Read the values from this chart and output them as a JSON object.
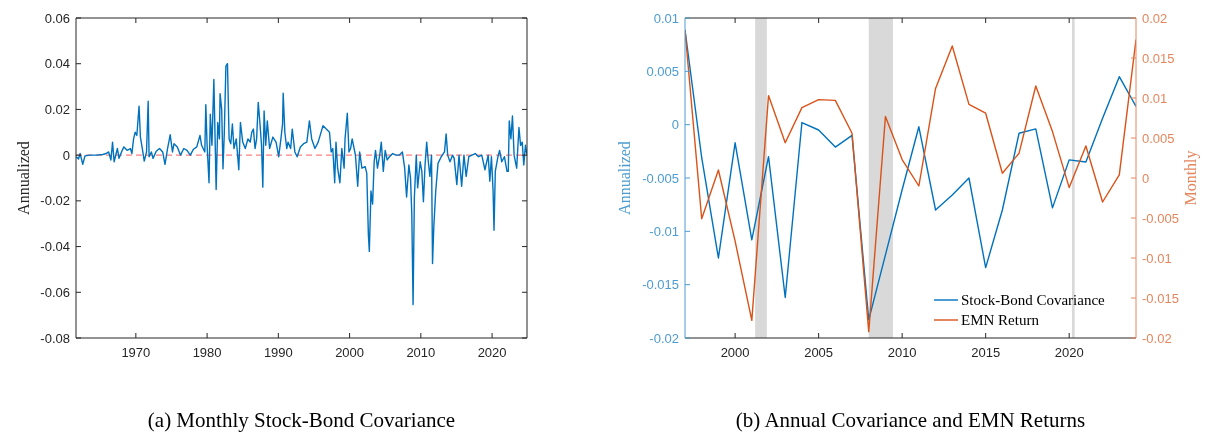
{
  "chart_data": [
    {
      "type": "line",
      "title": "(a) Monthly Stock-Bond Covariance",
      "ylabel": "Annualized",
      "xlim": [
        1961.6,
        2024.9
      ],
      "xticks": [
        1970,
        1980,
        1990,
        2000,
        2010,
        2020
      ],
      "ylim": [
        -0.08,
        0.06
      ],
      "yticks": [
        -0.08,
        -0.06,
        -0.04,
        -0.02,
        0,
        0.02,
        0.04,
        0.06
      ],
      "grid": false,
      "legend": false,
      "ref_lines": [
        {
          "axis": "y",
          "value": 0,
          "color": "#ff8080",
          "line_style": "dashed"
        }
      ],
      "series": [
        {
          "color": "#0072bd",
          "x": [
            1961.64,
            1961.95,
            1962.18,
            1962.55,
            1962.86,
            1963.55,
            1964.45,
            1965.36,
            1965.82,
            1966.18,
            1966.5,
            1966.73,
            1966.95,
            1967.41,
            1967.64,
            1968.09,
            1968.32,
            1968.77,
            1969.23,
            1969.45,
            1969.68,
            1969.91,
            1970.14,
            1970.45,
            1970.64,
            1970.91,
            1971.18,
            1971.5,
            1971.73,
            1971.86,
            1972.18,
            1972.41,
            1972.86,
            1973.32,
            1973.77,
            1974.09,
            1974.45,
            1974.82,
            1975.14,
            1975.36,
            1975.82,
            1976.27,
            1976.73,
            1977.18,
            1977.64,
            1978.09,
            1978.55,
            1979,
            1979.23,
            1979.68,
            1979.82,
            1980,
            1980.27,
            1980.45,
            1980.68,
            1980.95,
            1981.27,
            1981.5,
            1981.73,
            1981.82,
            1982.05,
            1982.23,
            1982.41,
            1982.64,
            1982.86,
            1983.09,
            1983.32,
            1983.55,
            1983.77,
            1984.09,
            1984.45,
            1984.68,
            1985,
            1985.36,
            1985.73,
            1986.05,
            1986.27,
            1986.5,
            1986.73,
            1986.95,
            1987.18,
            1987.41,
            1987.64,
            1987.82,
            1988,
            1988.23,
            1988.45,
            1988.77,
            1989.23,
            1989.68,
            1990.05,
            1990.36,
            1990.59,
            1990.68,
            1990.91,
            1991.18,
            1991.36,
            1991.73,
            1991.95,
            1992.32,
            1992.64,
            1993.09,
            1993.55,
            1994,
            1994.36,
            1994.68,
            1995.14,
            1995.59,
            1996.27,
            1996.73,
            1997.18,
            1997.41,
            1997.64,
            1997.91,
            1998.09,
            1998.32,
            1998.64,
            1998.91,
            1999.23,
            1999.36,
            1999.68,
            1999.91,
            2000.14,
            2000.36,
            2000.82,
            2001.14,
            2001.41,
            2001.73,
            2002.18,
            2002.41,
            2002.64,
            2002.77,
            2003,
            2003.23,
            2003.45,
            2003.64,
            2003.91,
            2004.23,
            2004.45,
            2004.73,
            2005,
            2005.27,
            2005.59,
            2006.05,
            2006.5,
            2006.95,
            2007.41,
            2007.73,
            2008,
            2008.32,
            2008.55,
            2008.73,
            2008.91,
            2009.09,
            2009.36,
            2009.55,
            2009.91,
            2010.14,
            2010.36,
            2010.59,
            2010.82,
            2011.05,
            2011.27,
            2011.5,
            2011.64,
            2011.82,
            2012.09,
            2012.41,
            2012.86,
            2013.32,
            2013.55,
            2013.77,
            2014.09,
            2014.45,
            2014.68,
            2015.05,
            2015.36,
            2015.73,
            2016.05,
            2016.36,
            2016.73,
            2017.18,
            2017.64,
            2018.09,
            2018.55,
            2019,
            2019.45,
            2019.68,
            2019.91,
            2020.14,
            2020.27,
            2020.45,
            2020.82,
            2021.05,
            2021.36,
            2021.73,
            2022.09,
            2022.27,
            2022.41,
            2022.64,
            2022.86,
            2023.09,
            2023.45,
            2023.77,
            2024,
            2024.23,
            2024.45,
            2024.68,
            2024.9
          ],
          "values": [
            -0.0007,
            -0.0017,
            0.0007,
            -0.004,
            -0.0003,
            0,
            0,
            0.0003,
            0.0007,
            0.0014,
            -0.0021,
            0.0057,
            -0.0029,
            0.0029,
            -0.0014,
            0.0021,
            0.0036,
            0.0021,
            0.0029,
            0.0007,
            0.0071,
            0.01,
            0.0086,
            0.0214,
            0.0079,
            0.0029,
            -0.0026,
            0.0014,
            0.0236,
            -0.0007,
            0.0014,
            -0.0014,
            0.0017,
            0.0029,
            0.0014,
            -0.004,
            0.0029,
            0.0089,
            0.0014,
            0.005,
            0.0036,
            0,
            0.0029,
            0.0021,
            0,
            0.0026,
            0.0036,
            0.0086,
            0.0043,
            0.0014,
            0.0221,
            0.0043,
            -0.0121,
            0.0179,
            0.0043,
            0.0331,
            -0.015,
            0.0143,
            0.0071,
            0.0269,
            0.02,
            -0.006,
            0.0093,
            0.0389,
            0.04,
            0.0071,
            0.005,
            0.0136,
            0.0029,
            0.0071,
            -0.0064,
            0.0143,
            0.0057,
            0.0029,
            0.0071,
            0.0057,
            0.01,
            0.0114,
            0.0029,
            0.0071,
            0.0231,
            0.0143,
            0.0043,
            -0.014,
            0.0193,
            0.0043,
            0.015,
            0.0029,
            0.0079,
            0.0057,
            -0.0007,
            0.0071,
            0.0136,
            0.0271,
            0.01,
            0.0029,
            0.0057,
            0.0029,
            0.0114,
            0.0014,
            -0.0007,
            0.0036,
            0.005,
            0.0057,
            0.015,
            0.0071,
            0.0029,
            0.0057,
            0.0129,
            0.0114,
            0.01,
            0.0014,
            0.0029,
            -0.0121,
            0.0057,
            -0.0057,
            -0.0121,
            0.0029,
            -0.0057,
            0.0071,
            0.0183,
            0.0014,
            0.0029,
            0.0071,
            0,
            -0.0136,
            0.0014,
            -0.0057,
            -0.005,
            -0.0079,
            -0.035,
            -0.0421,
            -0.0157,
            -0.0214,
            -0.0029,
            0.0021,
            -0.0057,
            0,
            0.0057,
            -0.0071,
            0.0021,
            -0.0021,
            -0.0007,
            0.0007,
            0,
            0,
            0.0014,
            -0.0057,
            -0.0183,
            -0.0043,
            -0.01,
            -0.0257,
            -0.0654,
            -0.0186,
            0,
            -0.0143,
            -0.0029,
            -0.0071,
            -0.0204,
            -0.0043,
            0.0057,
            -0.0029,
            -0.0093,
            0,
            -0.0474,
            -0.0314,
            -0.0157,
            -0.0036,
            -0.0007,
            0.0014,
            0.0093,
            0,
            -0.0029,
            0,
            -0.0014,
            -0.0129,
            0,
            -0.0136,
            0,
            -0.0093,
            -0.0007,
            0,
            0.0007,
            -0.0007,
            0,
            -0.0064,
            0,
            -0.0114,
            -0.0007,
            -0.0157,
            -0.0329,
            -0.0071,
            -0.0007,
            0.0021,
            -0.0029,
            -0.0007,
            -0.0071,
            -0.0071,
            0.015,
            0.0071,
            0.0171,
            0,
            -0.0057,
            0.0121,
            0.0043,
            0.0057,
            -0.0043,
            0.0043,
            0
          ]
        }
      ]
    },
    {
      "type": "line",
      "title": "(b) Annual Covariance and EMN Returns",
      "ylabel": "Annualized",
      "y2label": "Monthly",
      "xlim": [
        1997,
        2024
      ],
      "xticks": [
        2000,
        2005,
        2010,
        2015,
        2020
      ],
      "ylim": [
        -0.02,
        0.01
      ],
      "yticks": [
        -0.02,
        -0.015,
        -0.01,
        -0.005,
        0,
        0.005,
        0.01
      ],
      "y2lim": [
        -0.02,
        0.02
      ],
      "y2ticks": [
        -0.02,
        -0.015,
        -0.01,
        -0.005,
        0,
        0.005,
        0.01,
        0.015,
        0.02
      ],
      "grid": false,
      "legend": "bottom right",
      "bands": [
        {
          "axis": "x",
          "from": 2001.2,
          "to": 2001.9,
          "color": "#d9d9d9"
        },
        {
          "axis": "x",
          "from": 2008,
          "to": 2009.45,
          "color": "#d9d9d9"
        },
        {
          "axis": "x",
          "from": 2020.17,
          "to": 2020.33,
          "color": "#d9d9d9"
        }
      ],
      "x": [
        1997,
        1998,
        1999,
        2000,
        2001,
        2002,
        2003,
        2004,
        2005,
        2006,
        2007,
        2008,
        2009,
        2010,
        2011,
        2012,
        2013,
        2014,
        2015,
        2016,
        2017,
        2018,
        2019,
        2020,
        2021,
        2022,
        2023,
        2024
      ],
      "series": [
        {
          "name": "Stock-Bond Covariance",
          "color": "#0072bd",
          "values": [
            0.0089,
            -0.0031,
            -0.0125,
            -0.0017,
            -0.0108,
            -0.003,
            -0.0162,
            0.0002,
            -0.0005,
            -0.0021,
            -0.001,
            -0.0183,
            -0.0122,
            -0.0061,
            -0.0002,
            -0.008,
            -0.0066,
            -0.005,
            -0.0134,
            -0.008,
            -0.0008,
            -0.0004,
            -0.0078,
            -0.0033,
            -0.0035,
            0.0006,
            0.0045,
            0.0017
          ]
        },
        {
          "name": "EMN Return",
          "color": "#d95319",
          "axis": "y2",
          "values": [
            0.0185,
            -0.0051,
            0.001,
            -0.0079,
            -0.0178,
            0.0103,
            0.0044,
            0.0088,
            0.0098,
            0.0097,
            0.0056,
            -0.0192,
            0.0077,
            0.0023,
            -0.001,
            0.0112,
            0.0165,
            0.0092,
            0.0081,
            0.0006,
            0.0031,
            0.0115,
            0.0058,
            -0.0012,
            0.004,
            -0.003,
            0.0004,
            0.0173
          ]
        }
      ]
    }
  ]
}
